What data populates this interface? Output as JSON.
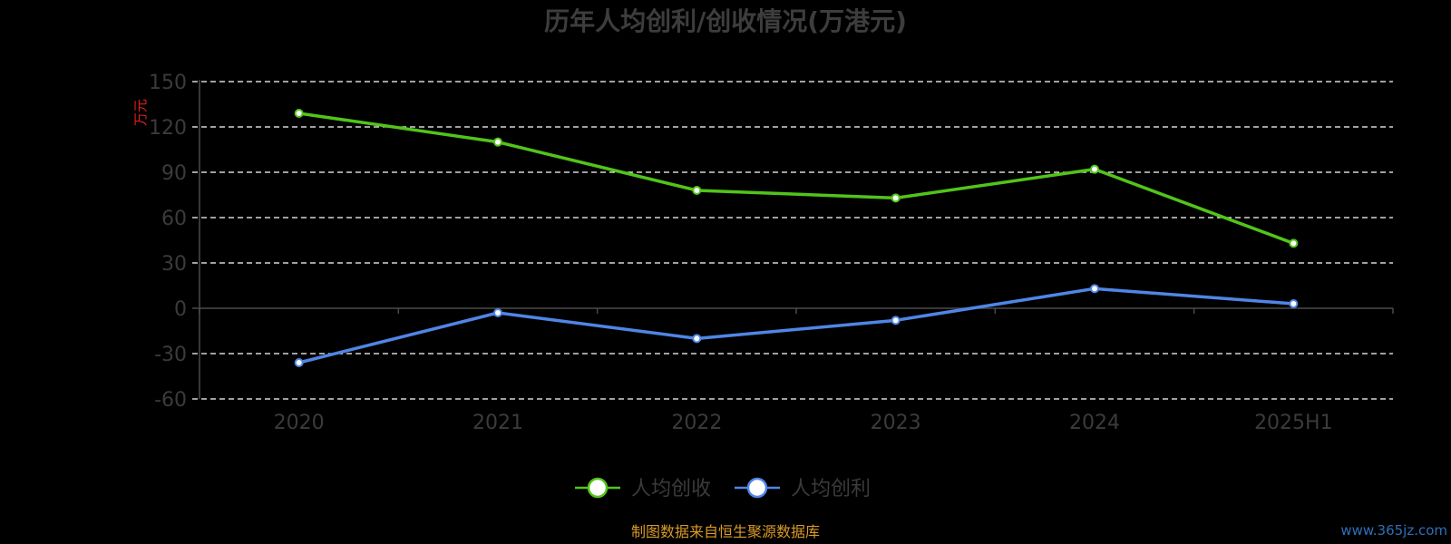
{
  "chart_data": {
    "type": "line",
    "title": "历年人均创利/创收情况(万港元)",
    "ylabel": "万元",
    "categories": [
      "2020",
      "2021",
      "2022",
      "2023",
      "2024",
      "2025H1"
    ],
    "yticks": [
      150,
      120,
      90,
      60,
      30,
      0,
      -30,
      -60
    ],
    "ylim": [
      -60,
      150
    ],
    "grid": true,
    "legend_position": "bottom-center",
    "series": [
      {
        "name": "人均创收",
        "color": "#52c41a",
        "values": [
          129,
          110,
          78,
          73,
          92,
          43
        ]
      },
      {
        "name": "人均创利",
        "color": "#4f86e6",
        "values": [
          -36,
          -3,
          -20,
          -8,
          13,
          3
        ]
      }
    ]
  },
  "footer": {
    "source": "制图数据来自恒生聚源数据库",
    "watermark": "www.365jz.com"
  }
}
